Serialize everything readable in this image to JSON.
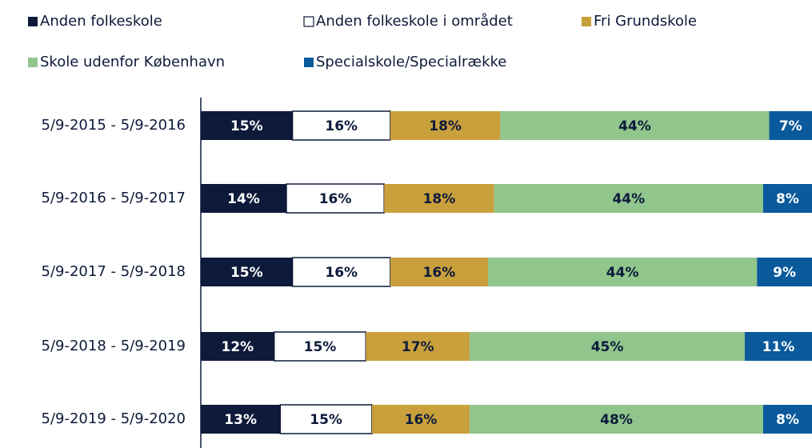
{
  "chart_data": {
    "type": "stacked_bar_horizontal",
    "categories": [
      "5/9-2015 - 5/9-2016",
      "5/9-2016 - 5/9-2017",
      "5/9-2017 - 5/9-2018",
      "5/9-2018 - 5/9-2019",
      "5/9-2019 - 5/9-2020"
    ],
    "xlim": [
      0,
      100
    ],
    "series": [
      {
        "name": "Anden folkeskole",
        "color": "#0d1a3a",
        "values": [
          15,
          14,
          15,
          12,
          13
        ],
        "value_labels": [
          "15%",
          "14%",
          "15%",
          "12%",
          "13%"
        ]
      },
      {
        "name": "Anden folkeskole i området",
        "color": "#ffffff",
        "values": [
          16,
          16,
          16,
          15,
          15
        ],
        "value_labels": [
          "16%",
          "16%",
          "16%",
          "15%",
          "15%"
        ]
      },
      {
        "name": "Fri Grundskole",
        "color": "#c9a03c",
        "values": [
          18,
          18,
          16,
          17,
          16
        ],
        "value_labels": [
          "18%",
          "18%",
          "16%",
          "17%",
          "16%"
        ]
      },
      {
        "name": "Skole udenfor København",
        "color": "#90c58c",
        "values": [
          44,
          44,
          44,
          45,
          48
        ],
        "value_labels": [
          "44%",
          "44%",
          "44%",
          "45%",
          "48%"
        ]
      },
      {
        "name": "Specialskole/Specialrække",
        "color": "#0a5a9c",
        "values": [
          7,
          8,
          9,
          11,
          8
        ],
        "value_labels": [
          "7%",
          "8%",
          "9%",
          "11%",
          "8%"
        ]
      }
    ]
  }
}
